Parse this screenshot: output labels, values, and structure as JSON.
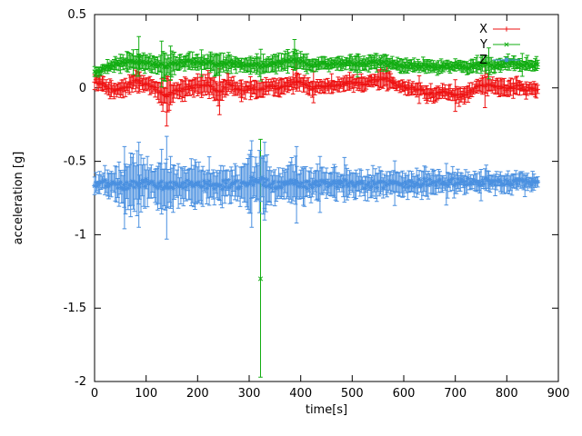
{
  "page": {
    "background": "#ffffff",
    "axis_color": "#000000"
  },
  "chart_data": {
    "type": "scatter",
    "subtype": "points-with-errorbars",
    "title": "",
    "xlabel": "time[s]",
    "ylabel": "acceleration [g]",
    "xlim": [
      0,
      900
    ],
    "ylim": [
      -2,
      0.5
    ],
    "xtick_values": [
      0,
      100,
      200,
      300,
      400,
      500,
      600,
      700,
      800,
      900
    ],
    "xtick_labels": [
      "0",
      "100",
      "200",
      "300",
      "400",
      "500",
      "600",
      "700",
      "800",
      "900"
    ],
    "ytick_values": [
      0.5,
      0,
      -0.5,
      -1,
      -1.5,
      -2
    ],
    "ytick_labels": [
      "0.5",
      "0",
      "-0.5",
      "-1",
      "-1.5",
      "-2"
    ],
    "grid": false,
    "legend_position": "top-right",
    "anchors_format": "[time_s, value_g, errorbar_halfwidth_g] sampled every 20 s from the dense trace",
    "series": [
      {
        "name": "X",
        "color": "#ee1111",
        "marker": "plus",
        "noise": 0.012,
        "anchors": [
          [
            0,
            0.05,
            0.05
          ],
          [
            20,
            0.01,
            0.04
          ],
          [
            40,
            -0.02,
            0.05
          ],
          [
            60,
            0.0,
            0.05
          ],
          [
            80,
            0.05,
            0.06
          ],
          [
            100,
            0.03,
            0.05
          ],
          [
            120,
            -0.01,
            0.05
          ],
          [
            140,
            -0.05,
            0.12
          ],
          [
            160,
            -0.02,
            0.05
          ],
          [
            180,
            0.0,
            0.05
          ],
          [
            200,
            0.01,
            0.06
          ],
          [
            220,
            0.03,
            0.07
          ],
          [
            240,
            -0.04,
            0.07
          ],
          [
            260,
            0.03,
            0.06
          ],
          [
            280,
            -0.02,
            0.05
          ],
          [
            300,
            0.0,
            0.05
          ],
          [
            320,
            -0.01,
            0.05
          ],
          [
            340,
            0.01,
            0.05
          ],
          [
            360,
            0.0,
            0.06
          ],
          [
            380,
            0.03,
            0.07
          ],
          [
            400,
            0.04,
            0.06
          ],
          [
            420,
            0.0,
            0.05
          ],
          [
            440,
            0.01,
            0.04
          ],
          [
            460,
            0.02,
            0.04
          ],
          [
            480,
            0.03,
            0.05
          ],
          [
            500,
            0.04,
            0.05
          ],
          [
            520,
            0.03,
            0.05
          ],
          [
            540,
            0.05,
            0.05
          ],
          [
            560,
            0.07,
            0.06
          ],
          [
            580,
            0.03,
            0.05
          ],
          [
            600,
            0.01,
            0.04
          ],
          [
            620,
            0.0,
            0.04
          ],
          [
            640,
            -0.03,
            0.05
          ],
          [
            660,
            -0.05,
            0.05
          ],
          [
            680,
            -0.02,
            0.04
          ],
          [
            700,
            -0.06,
            0.05
          ],
          [
            720,
            -0.04,
            0.05
          ],
          [
            740,
            0.0,
            0.04
          ],
          [
            760,
            0.02,
            0.07
          ],
          [
            780,
            0.01,
            0.05
          ],
          [
            800,
            -0.01,
            0.06
          ],
          [
            820,
            0.01,
            0.05
          ],
          [
            840,
            -0.01,
            0.04
          ],
          [
            860,
            -0.01,
            0.04
          ]
        ],
        "outliers": [
          {
            "t": 140,
            "v": -0.06,
            "lo": -0.26,
            "hi": 0.08
          },
          {
            "t": 392,
            "v": 0.1,
            "lo": 0.02,
            "hi": 0.18
          }
        ]
      },
      {
        "name": "Y",
        "color": "#12ad12",
        "marker": "cross",
        "noise": 0.012,
        "anchors": [
          [
            0,
            0.1,
            0.03
          ],
          [
            20,
            0.13,
            0.04
          ],
          [
            40,
            0.16,
            0.04
          ],
          [
            60,
            0.17,
            0.05
          ],
          [
            80,
            0.18,
            0.08
          ],
          [
            100,
            0.17,
            0.05
          ],
          [
            120,
            0.16,
            0.05
          ],
          [
            140,
            0.15,
            0.12
          ],
          [
            160,
            0.17,
            0.05
          ],
          [
            180,
            0.18,
            0.05
          ],
          [
            200,
            0.17,
            0.05
          ],
          [
            220,
            0.17,
            0.06
          ],
          [
            240,
            0.16,
            0.06
          ],
          [
            260,
            0.17,
            0.05
          ],
          [
            280,
            0.16,
            0.04
          ],
          [
            300,
            0.16,
            0.05
          ],
          [
            320,
            0.15,
            0.06
          ],
          [
            340,
            0.16,
            0.05
          ],
          [
            360,
            0.17,
            0.05
          ],
          [
            380,
            0.19,
            0.07
          ],
          [
            400,
            0.18,
            0.06
          ],
          [
            420,
            0.16,
            0.04
          ],
          [
            440,
            0.16,
            0.04
          ],
          [
            460,
            0.16,
            0.04
          ],
          [
            480,
            0.17,
            0.04
          ],
          [
            500,
            0.17,
            0.05
          ],
          [
            520,
            0.16,
            0.04
          ],
          [
            540,
            0.17,
            0.05
          ],
          [
            560,
            0.18,
            0.05
          ],
          [
            580,
            0.16,
            0.04
          ],
          [
            600,
            0.15,
            0.04
          ],
          [
            620,
            0.15,
            0.04
          ],
          [
            640,
            0.15,
            0.04
          ],
          [
            660,
            0.14,
            0.04
          ],
          [
            680,
            0.15,
            0.04
          ],
          [
            700,
            0.15,
            0.04
          ],
          [
            720,
            0.14,
            0.04
          ],
          [
            740,
            0.15,
            0.04
          ],
          [
            760,
            0.16,
            0.05
          ],
          [
            780,
            0.15,
            0.04
          ],
          [
            800,
            0.17,
            0.05
          ],
          [
            820,
            0.16,
            0.04
          ],
          [
            840,
            0.16,
            0.04
          ],
          [
            860,
            0.16,
            0.04
          ]
        ],
        "outliers": [
          {
            "t": 322,
            "v": -1.3,
            "lo": -1.97,
            "hi": -0.35
          },
          {
            "t": 86,
            "v": 0.22,
            "lo": 0.08,
            "hi": 0.35
          },
          {
            "t": 388,
            "v": 0.24,
            "lo": 0.12,
            "hi": 0.33
          }
        ]
      },
      {
        "name": "Z",
        "color": "#4a90e0",
        "marker": "star",
        "noise": 0.028,
        "anchors": [
          [
            0,
            -0.66,
            0.06
          ],
          [
            20,
            -0.65,
            0.08
          ],
          [
            40,
            -0.66,
            0.12
          ],
          [
            60,
            -0.67,
            0.16
          ],
          [
            80,
            -0.66,
            0.2
          ],
          [
            100,
            -0.65,
            0.14
          ],
          [
            120,
            -0.66,
            0.12
          ],
          [
            140,
            -0.67,
            0.24
          ],
          [
            160,
            -0.66,
            0.12
          ],
          [
            180,
            -0.65,
            0.14
          ],
          [
            200,
            -0.66,
            0.12
          ],
          [
            220,
            -0.66,
            0.14
          ],
          [
            240,
            -0.67,
            0.12
          ],
          [
            260,
            -0.65,
            0.1
          ],
          [
            280,
            -0.66,
            0.1
          ],
          [
            300,
            -0.64,
            0.17
          ],
          [
            320,
            -0.63,
            0.2
          ],
          [
            340,
            -0.66,
            0.12
          ],
          [
            360,
            -0.66,
            0.1
          ],
          [
            380,
            -0.64,
            0.16
          ],
          [
            400,
            -0.66,
            0.12
          ],
          [
            420,
            -0.66,
            0.1
          ],
          [
            440,
            -0.66,
            0.1
          ],
          [
            460,
            -0.66,
            0.1
          ],
          [
            480,
            -0.65,
            0.1
          ],
          [
            500,
            -0.66,
            0.09
          ],
          [
            520,
            -0.66,
            0.09
          ],
          [
            540,
            -0.65,
            0.1
          ],
          [
            560,
            -0.66,
            0.09
          ],
          [
            580,
            -0.66,
            0.08
          ],
          [
            600,
            -0.65,
            0.08
          ],
          [
            620,
            -0.65,
            0.08
          ],
          [
            640,
            -0.64,
            0.08
          ],
          [
            660,
            -0.65,
            0.07
          ],
          [
            680,
            -0.64,
            0.07
          ],
          [
            700,
            -0.64,
            0.07
          ],
          [
            720,
            -0.64,
            0.07
          ],
          [
            740,
            -0.64,
            0.06
          ],
          [
            760,
            -0.64,
            0.06
          ],
          [
            780,
            -0.64,
            0.06
          ],
          [
            800,
            -0.64,
            0.06
          ],
          [
            820,
            -0.65,
            0.06
          ],
          [
            840,
            -0.64,
            0.06
          ],
          [
            860,
            -0.64,
            0.05
          ]
        ],
        "outliers": [
          {
            "t": 58,
            "v": -0.66,
            "lo": -0.96,
            "hi": -0.4
          },
          {
            "t": 86,
            "v": -0.66,
            "lo": -0.95,
            "hi": -0.37
          },
          {
            "t": 140,
            "v": -0.67,
            "lo": -1.03,
            "hi": -0.33
          },
          {
            "t": 305,
            "v": -0.63,
            "lo": -0.95,
            "hi": -0.36
          },
          {
            "t": 330,
            "v": -0.62,
            "lo": -0.9,
            "hi": -0.37
          },
          {
            "t": 392,
            "v": -0.64,
            "lo": -0.92,
            "hi": -0.4
          }
        ]
      }
    ]
  }
}
